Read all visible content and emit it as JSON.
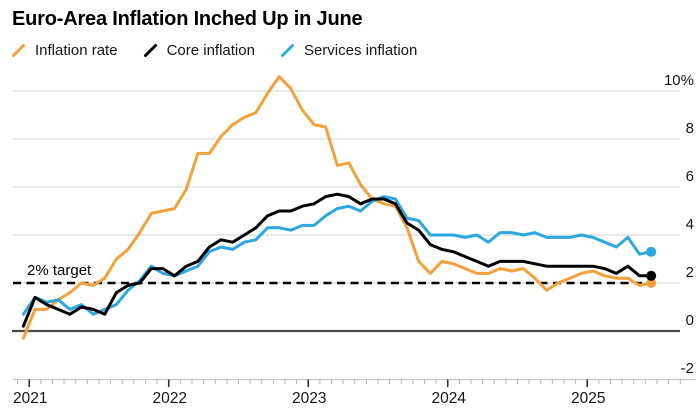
{
  "header": {
    "title": "Euro-Area Inflation Inched Up in June"
  },
  "legend": [
    {
      "label": "Inflation rate",
      "color": "#F2A13C"
    },
    {
      "label": "Core inflation",
      "color": "#000000"
    },
    {
      "label": "Services inflation",
      "color": "#2BA7E1"
    }
  ],
  "annotation": {
    "target_label": "2% target"
  },
  "colors": {
    "grid": "#DBDBDB",
    "zero_line": "#4A4A4C",
    "axis_line": "#C8C8C8",
    "minor_tick": "#B4B4B4",
    "major_tick": "#2F2F2F",
    "tick_label": "#161616",
    "target_dash": "#000000"
  },
  "chart_data": {
    "type": "line",
    "title": "Euro-Area Inflation Inched Up in June",
    "unit": "percent, year-over-year",
    "x_frequency": "monthly",
    "x_start": "2020-12",
    "x_end": "2025-06",
    "x_tick_labels": [
      "2021",
      "2022",
      "2023",
      "2024",
      "2025"
    ],
    "y_tick_values": [
      10,
      8,
      6,
      4,
      2,
      0,
      -2
    ],
    "y_tick_labels": [
      "10%",
      "8",
      "6",
      "4",
      "2",
      "0",
      "-2"
    ],
    "ylim": [
      -2,
      10.75
    ],
    "grid": "horizontal",
    "legend_position": "top",
    "target_line": {
      "value": 2,
      "label": "2% target"
    },
    "series": [
      {
        "name": "Inflation rate",
        "color": "#F2A13C",
        "end_dot": true,
        "values": [
          -0.3,
          0.9,
          0.9,
          1.3,
          1.6,
          2.0,
          1.9,
          2.2,
          3.0,
          3.4,
          4.1,
          4.9,
          5.0,
          5.1,
          5.9,
          7.4,
          7.4,
          8.1,
          8.6,
          8.9,
          9.1,
          9.9,
          10.6,
          10.1,
          9.2,
          8.6,
          8.5,
          6.9,
          7.0,
          6.1,
          5.5,
          5.3,
          5.2,
          4.3,
          2.9,
          2.4,
          2.9,
          2.8,
          2.6,
          2.4,
          2.4,
          2.6,
          2.5,
          2.6,
          2.2,
          1.7,
          2.0,
          2.2,
          2.4,
          2.5,
          2.3,
          2.2,
          2.2,
          1.9,
          2.0
        ]
      },
      {
        "name": "Core inflation",
        "color": "#000000",
        "end_dot": true,
        "values": [
          0.2,
          1.4,
          1.1,
          0.9,
          0.7,
          1.0,
          0.9,
          0.7,
          1.6,
          1.9,
          2.0,
          2.6,
          2.6,
          2.3,
          2.7,
          2.9,
          3.5,
          3.8,
          3.7,
          4.0,
          4.3,
          4.8,
          5.0,
          5.0,
          5.2,
          5.3,
          5.6,
          5.7,
          5.6,
          5.3,
          5.5,
          5.5,
          5.3,
          4.5,
          4.2,
          3.6,
          3.4,
          3.3,
          3.1,
          2.9,
          2.7,
          2.9,
          2.9,
          2.9,
          2.8,
          2.7,
          2.7,
          2.7,
          2.7,
          2.7,
          2.6,
          2.4,
          2.7,
          2.3,
          2.3
        ]
      },
      {
        "name": "Services inflation",
        "color": "#2BA7E1",
        "end_dot": true,
        "values": [
          0.7,
          1.4,
          1.2,
          1.3,
          0.9,
          1.1,
          0.7,
          0.9,
          1.1,
          1.7,
          2.1,
          2.7,
          2.4,
          2.3,
          2.5,
          2.7,
          3.3,
          3.5,
          3.4,
          3.7,
          3.8,
          4.3,
          4.3,
          4.2,
          4.4,
          4.4,
          4.8,
          5.1,
          5.2,
          5.0,
          5.4,
          5.6,
          5.5,
          4.7,
          4.6,
          4.0,
          4.0,
          4.0,
          3.9,
          4.0,
          3.7,
          4.1,
          4.1,
          4.0,
          4.1,
          3.9,
          3.9,
          3.9,
          4.0,
          3.9,
          3.7,
          3.5,
          3.9,
          3.2,
          3.3
        ]
      }
    ]
  }
}
